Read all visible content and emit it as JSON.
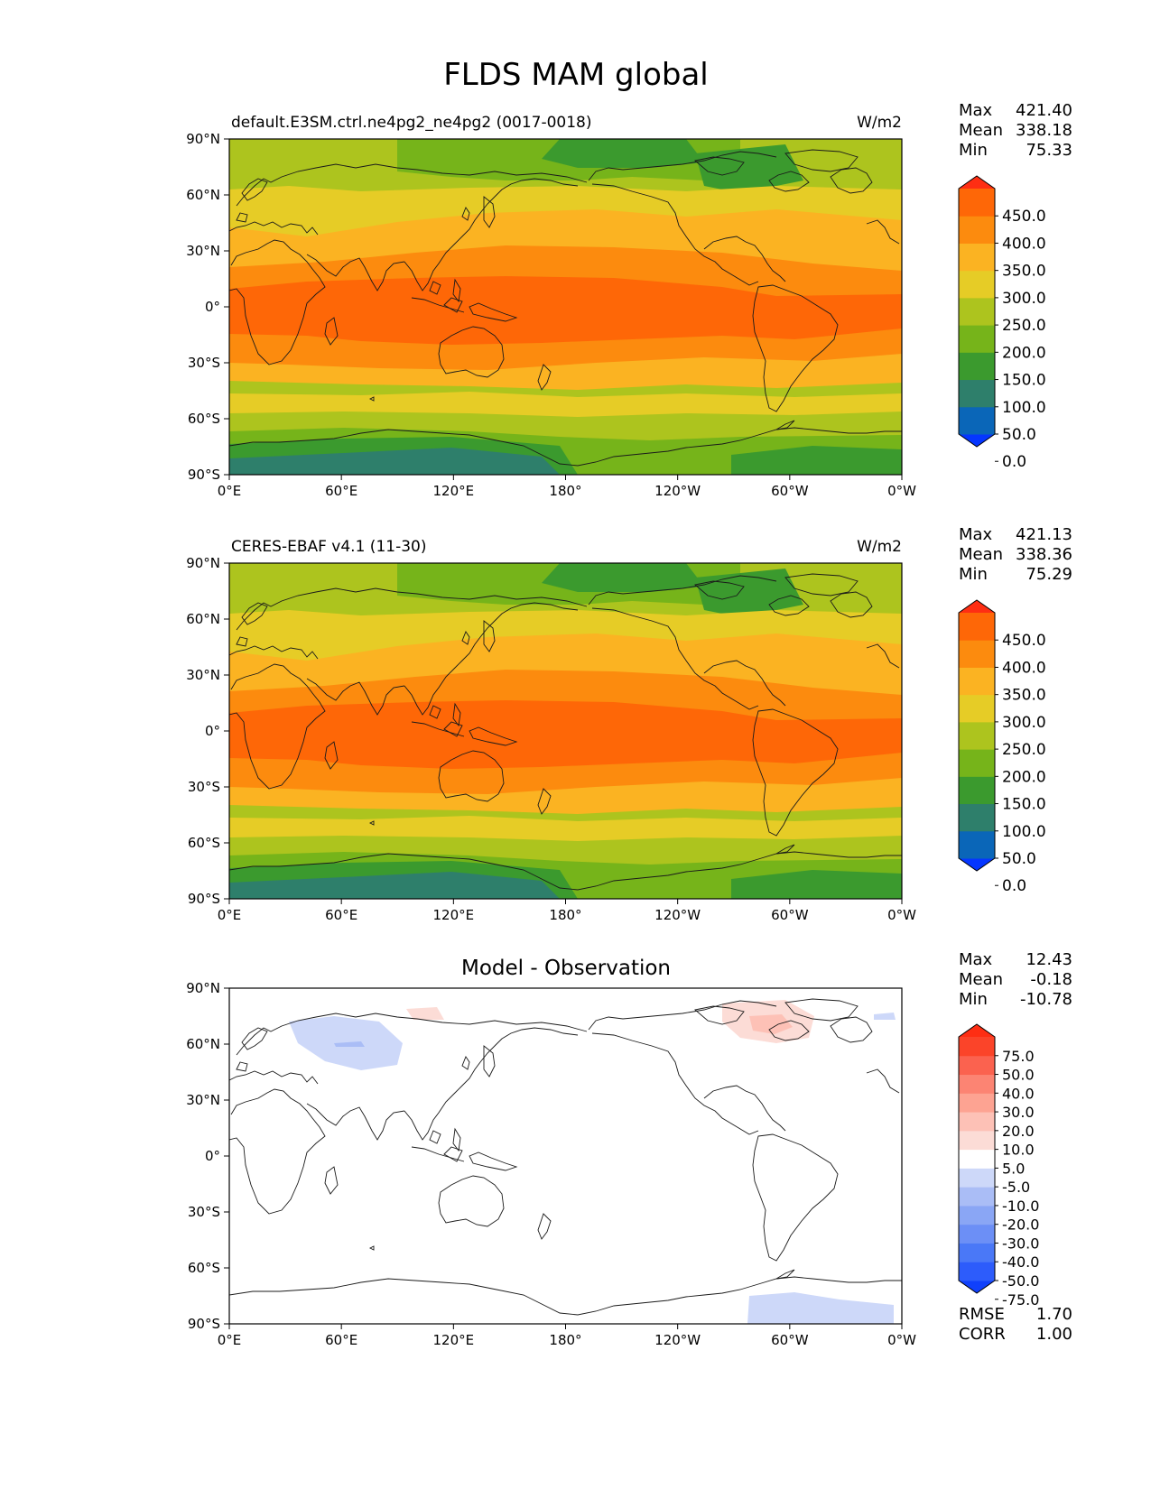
{
  "figure": {
    "title": "FLDS MAM global"
  },
  "colors": {
    "frame": "#000000",
    "coast": "#1a1a1a",
    "field_levels": [
      "#0536ff",
      "#0a66b8",
      "#2e7f6b",
      "#3b9a2e",
      "#76b41a",
      "#adc41e",
      "#e6cc26",
      "#fbb322",
      "#fc8b0e",
      "#fe6707",
      "#fe2e13"
    ],
    "diff_levels": [
      "#1040fb",
      "#2d5cfb",
      "#4a78f7",
      "#6c8ff6",
      "#8aa6f5",
      "#aabdf6",
      "#cdd8f9",
      "#ffffff",
      "#fcdcd6",
      "#fdc1b6",
      "#fda392",
      "#fc8473",
      "#fb624f",
      "#fb4429",
      "#fe2e13"
    ]
  },
  "axes": {
    "lat_ticks": [
      "90°N",
      "60°N",
      "30°N",
      "0°",
      "30°S",
      "60°S",
      "90°S"
    ],
    "lon_ticks": [
      "0°E",
      "60°E",
      "120°E",
      "180°",
      "120°W",
      "60°W",
      "0°W"
    ]
  },
  "panels": [
    {
      "name": "model",
      "title_left": "default.E3SM.ctrl.ne4pg2_ne4pg2 (0017-0018)",
      "title_right": "W/m2",
      "stats": [
        {
          "label": "Max",
          "value": "421.40"
        },
        {
          "label": "Mean",
          "value": "338.18"
        },
        {
          "label": "Min",
          "value": "75.33"
        }
      ],
      "colorbar_ticks": [
        "450.0",
        "400.0",
        "350.0",
        "300.0",
        "250.0",
        "200.0",
        "150.0",
        "100.0",
        "50.0",
        "0.0"
      ]
    },
    {
      "name": "obs",
      "title_left": "CERES-EBAF v4.1 (11-30)",
      "title_right": "W/m2",
      "stats": [
        {
          "label": "Max",
          "value": "421.13"
        },
        {
          "label": "Mean",
          "value": "338.36"
        },
        {
          "label": "Min",
          "value": "75.29"
        }
      ],
      "colorbar_ticks": [
        "450.0",
        "400.0",
        "350.0",
        "300.0",
        "250.0",
        "200.0",
        "150.0",
        "100.0",
        "50.0",
        "0.0"
      ]
    },
    {
      "name": "diff",
      "title_center": "Model - Observation",
      "stats": [
        {
          "label": "Max",
          "value": "12.43"
        },
        {
          "label": "Mean",
          "value": "-0.18"
        },
        {
          "label": "Min",
          "value": "-10.78"
        }
      ],
      "colorbar_ticks": [
        "75.0",
        "50.0",
        "40.0",
        "30.0",
        "20.0",
        "10.0",
        "5.0",
        "-5.0",
        "-10.0",
        "-20.0",
        "-30.0",
        "-40.0",
        "-50.0",
        "-75.0"
      ],
      "metrics": [
        {
          "label": "RMSE",
          "value": "1.70"
        },
        {
          "label": "CORR",
          "value": "1.00"
        }
      ]
    }
  ]
}
